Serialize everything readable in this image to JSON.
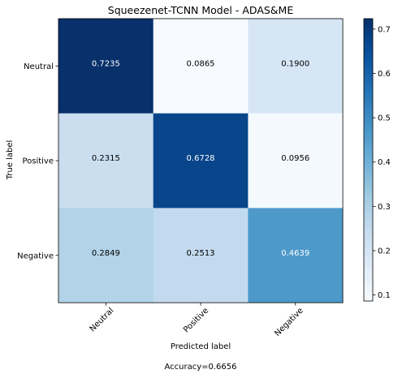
{
  "chart_data": {
    "type": "heatmap",
    "title": "Squeezenet-TCNN Model  -  ADAS&ME",
    "xlabel": "Predicted label",
    "ylabel": "True label",
    "x_categories": [
      "Neutral",
      "Positive",
      "Negative"
    ],
    "y_categories": [
      "Neutral",
      "Positive",
      "Negative"
    ],
    "matrix": [
      [
        "0.7235",
        "0.0865",
        "0.1900"
      ],
      [
        "0.2315",
        "0.6728",
        "0.0956"
      ],
      [
        "0.2849",
        "0.2513",
        "0.4639"
      ]
    ],
    "colormap": "Blues",
    "colorbar": {
      "range": [
        0.0865,
        0.7235
      ],
      "ticks": [
        "0.1",
        "0.2",
        "0.3",
        "0.4",
        "0.5",
        "0.6",
        "0.7"
      ],
      "tick_values": [
        0.1,
        0.2,
        0.3,
        0.4,
        0.5,
        0.6,
        0.7
      ]
    },
    "footer": "Accuracy=0.6656",
    "grid": false
  }
}
